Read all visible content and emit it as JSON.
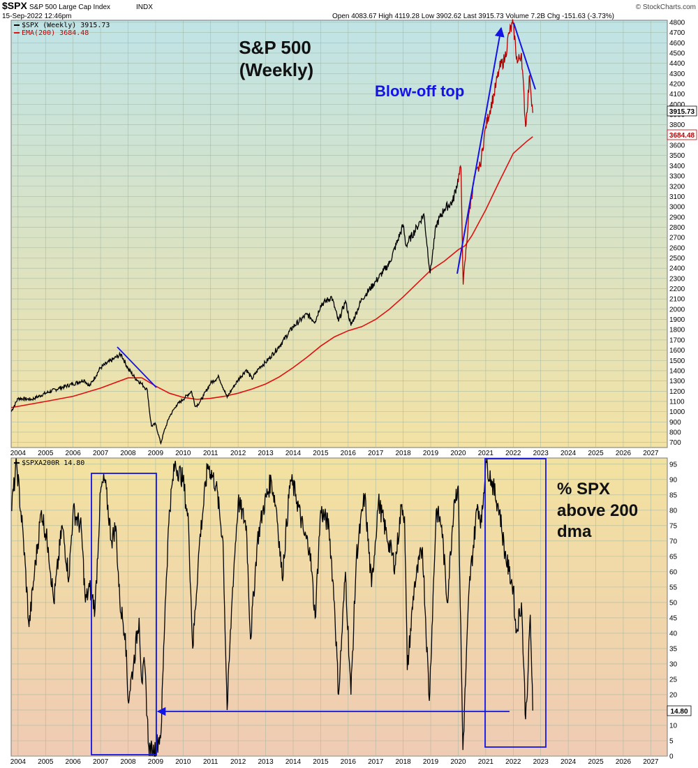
{
  "header": {
    "symbol": "$SPX",
    "name": "S&P 500 Large Cap Index",
    "exchange": "INDX",
    "timestamp": "15-Sep-2022 12:46pm",
    "ohlc": "Open 4083.67  High 4119.28  Low 3902.62  Last 3915.73  Volume 7.2B  Chg -151.63 (-3.73%)",
    "credit": "© StockCharts.com"
  },
  "legend": {
    "price": "$SPX (Weekly) 3915.73",
    "ema": "EMA(200) 3684.48",
    "breadth": "$SPXA200R 14.80"
  },
  "annotations": {
    "title_line1": "S&P 500",
    "title_line2": "(Weekly)",
    "blowoff": "Blow-off top",
    "right_line1": "% SPX",
    "right_line2": "above 200",
    "right_line3": "dma"
  },
  "value_tags": {
    "price_last": "3915.73",
    "ema_last": "3684.48",
    "breadth_last": "14.80"
  },
  "colors": {
    "price_line": "#000000",
    "price_line_recent": "#b40000",
    "ema_line": "#e01010",
    "annotation_blue": "#1313e6",
    "top_bg_top": "#bfe3e6",
    "top_bg_bottom": "#f3e2a4",
    "bottom_bg_top": "#f2e2a0",
    "bottom_bg_bottom": "#efcbb4"
  },
  "chart_data": [
    {
      "type": "line",
      "title": "S&P 500 (Weekly)",
      "ylim": [
        650,
        4820
      ],
      "y_ticks": [
        700,
        800,
        900,
        1000,
        1100,
        1200,
        1300,
        1400,
        1500,
        1600,
        1700,
        1800,
        1900,
        2000,
        2100,
        2200,
        2300,
        2400,
        2500,
        2600,
        2700,
        2800,
        2900,
        3000,
        3100,
        3200,
        3300,
        3400,
        3500,
        3600,
        3700,
        3800,
        3900,
        4000,
        4100,
        4200,
        4300,
        4400,
        4500,
        4600,
        4700,
        4800
      ],
      "xlim": [
        2003.75,
        2027.6
      ],
      "x_ticks": [
        "2004",
        "2005",
        "2006",
        "2007",
        "2008",
        "2009",
        "2010",
        "2011",
        "2012",
        "2013",
        "2014",
        "2015",
        "2016",
        "2017",
        "2018",
        "2019",
        "2020",
        "2021",
        "2022",
        "2023",
        "2024",
        "2025",
        "2026",
        "2027"
      ],
      "grid": true,
      "series": [
        {
          "name": "$SPX (Weekly)",
          "points": [
            [
              2003.75,
              1000
            ],
            [
              2004.0,
              1130
            ],
            [
              2004.5,
              1120
            ],
            [
              2005.0,
              1180
            ],
            [
              2005.5,
              1230
            ],
            [
              2006.0,
              1270
            ],
            [
              2006.4,
              1310
            ],
            [
              2006.6,
              1250
            ],
            [
              2007.0,
              1430
            ],
            [
              2007.5,
              1520
            ],
            [
              2007.75,
              1560
            ],
            [
              2008.0,
              1420
            ],
            [
              2008.25,
              1330
            ],
            [
              2008.5,
              1270
            ],
            [
              2008.7,
              1210
            ],
            [
              2008.78,
              1000
            ],
            [
              2008.85,
              860
            ],
            [
              2009.0,
              880
            ],
            [
              2009.19,
              690
            ],
            [
              2009.3,
              800
            ],
            [
              2009.5,
              950
            ],
            [
              2009.75,
              1060
            ],
            [
              2010.0,
              1120
            ],
            [
              2010.3,
              1200
            ],
            [
              2010.45,
              1050
            ],
            [
              2010.6,
              1090
            ],
            [
              2010.75,
              1160
            ],
            [
              2011.0,
              1280
            ],
            [
              2011.3,
              1340
            ],
            [
              2011.6,
              1140
            ],
            [
              2011.8,
              1230
            ],
            [
              2012.0,
              1310
            ],
            [
              2012.3,
              1410
            ],
            [
              2012.5,
              1320
            ],
            [
              2012.8,
              1440
            ],
            [
              2013.0,
              1480
            ],
            [
              2013.5,
              1640
            ],
            [
              2014.0,
              1830
            ],
            [
              2014.5,
              1950
            ],
            [
              2014.8,
              1880
            ],
            [
              2015.0,
              2040
            ],
            [
              2015.4,
              2120
            ],
            [
              2015.65,
              1880
            ],
            [
              2015.9,
              2080
            ],
            [
              2016.1,
              1840
            ],
            [
              2016.5,
              2100
            ],
            [
              2017.0,
              2270
            ],
            [
              2017.5,
              2450
            ],
            [
              2018.0,
              2820
            ],
            [
              2018.1,
              2620
            ],
            [
              2018.5,
              2800
            ],
            [
              2018.75,
              2930
            ],
            [
              2018.98,
              2350
            ],
            [
              2019.2,
              2820
            ],
            [
              2019.5,
              2980
            ],
            [
              2019.8,
              3050
            ],
            [
              2020.1,
              3380
            ],
            [
              2020.18,
              2240
            ],
            [
              2020.4,
              2950
            ],
            [
              2020.6,
              3300
            ],
            [
              2020.8,
              3400
            ],
            [
              2021.0,
              3780
            ],
            [
              2021.3,
              4100
            ],
            [
              2021.5,
              4350
            ],
            [
              2021.7,
              4450
            ],
            [
              2021.85,
              4700
            ],
            [
              2022.0,
              4780
            ],
            [
              2022.15,
              4400
            ],
            [
              2022.3,
              4500
            ],
            [
              2022.45,
              3780
            ],
            [
              2022.6,
              4280
            ],
            [
              2022.71,
              3915.73
            ]
          ]
        },
        {
          "name": "EMA(200)",
          "points": [
            [
              2003.75,
              1040
            ],
            [
              2005.0,
              1100
            ],
            [
              2006.0,
              1150
            ],
            [
              2007.0,
              1230
            ],
            [
              2007.5,
              1280
            ],
            [
              2008.0,
              1330
            ],
            [
              2008.5,
              1330
            ],
            [
              2009.0,
              1250
            ],
            [
              2009.5,
              1180
            ],
            [
              2010.0,
              1140
            ],
            [
              2010.5,
              1120
            ],
            [
              2011.0,
              1130
            ],
            [
              2011.5,
              1150
            ],
            [
              2012.0,
              1180
            ],
            [
              2012.5,
              1220
            ],
            [
              2013.0,
              1270
            ],
            [
              2013.5,
              1340
            ],
            [
              2014.0,
              1430
            ],
            [
              2014.5,
              1530
            ],
            [
              2015.0,
              1640
            ],
            [
              2015.5,
              1730
            ],
            [
              2016.0,
              1790
            ],
            [
              2016.5,
              1830
            ],
            [
              2017.0,
              1900
            ],
            [
              2017.5,
              2000
            ],
            [
              2018.0,
              2120
            ],
            [
              2018.5,
              2250
            ],
            [
              2019.0,
              2380
            ],
            [
              2019.5,
              2470
            ],
            [
              2020.0,
              2580
            ],
            [
              2020.25,
              2620
            ],
            [
              2020.5,
              2720
            ],
            [
              2021.0,
              2970
            ],
            [
              2021.5,
              3250
            ],
            [
              2022.0,
              3520
            ],
            [
              2022.5,
              3640
            ],
            [
              2022.71,
              3684.48
            ]
          ]
        }
      ]
    },
    {
      "type": "line",
      "title": "$SPXA200R",
      "ylim": [
        0,
        97
      ],
      "y_ticks": [
        0,
        5,
        10,
        15,
        20,
        25,
        30,
        35,
        40,
        45,
        50,
        55,
        60,
        65,
        70,
        75,
        80,
        85,
        90,
        95
      ],
      "xlim": [
        2003.75,
        2027.6
      ],
      "x_ticks": [
        "2004",
        "2005",
        "2006",
        "2007",
        "2008",
        "2009",
        "2010",
        "2011",
        "2012",
        "2013",
        "2014",
        "2015",
        "2016",
        "2017",
        "2018",
        "2019",
        "2020",
        "2021",
        "2022",
        "2023",
        "2024",
        "2025",
        "2026",
        "2027"
      ],
      "grid": true,
      "series": [
        {
          "name": "$SPXA200R",
          "points": [
            [
              2003.75,
              80
            ],
            [
              2003.95,
              95
            ],
            [
              2004.2,
              70
            ],
            [
              2004.4,
              42
            ],
            [
              2004.6,
              60
            ],
            [
              2004.85,
              80
            ],
            [
              2005.1,
              68
            ],
            [
              2005.3,
              50
            ],
            [
              2005.6,
              75
            ],
            [
              2005.85,
              58
            ],
            [
              2006.0,
              80
            ],
            [
              2006.3,
              74
            ],
            [
              2006.45,
              50
            ],
            [
              2006.6,
              55
            ],
            [
              2006.8,
              48
            ],
            [
              2007.0,
              86
            ],
            [
              2007.15,
              90
            ],
            [
              2007.4,
              70
            ],
            [
              2007.55,
              75
            ],
            [
              2007.7,
              50
            ],
            [
              2007.9,
              40
            ],
            [
              2008.0,
              18
            ],
            [
              2008.2,
              30
            ],
            [
              2008.4,
              45
            ],
            [
              2008.5,
              24
            ],
            [
              2008.6,
              30
            ],
            [
              2008.75,
              3
            ],
            [
              2008.9,
              1
            ],
            [
              2009.1,
              5
            ],
            [
              2009.2,
              8
            ],
            [
              2009.35,
              50
            ],
            [
              2009.5,
              80
            ],
            [
              2009.7,
              95
            ],
            [
              2010.0,
              90
            ],
            [
              2010.2,
              75
            ],
            [
              2010.35,
              35
            ],
            [
              2010.6,
              70
            ],
            [
              2010.9,
              95
            ],
            [
              2011.2,
              88
            ],
            [
              2011.45,
              70
            ],
            [
              2011.6,
              15
            ],
            [
              2011.8,
              55
            ],
            [
              2012.0,
              83
            ],
            [
              2012.3,
              75
            ],
            [
              2012.45,
              38
            ],
            [
              2012.7,
              70
            ],
            [
              2012.9,
              80
            ],
            [
              2013.2,
              90
            ],
            [
              2013.4,
              80
            ],
            [
              2013.6,
              58
            ],
            [
              2013.9,
              90
            ],
            [
              2014.1,
              85
            ],
            [
              2014.4,
              72
            ],
            [
              2014.6,
              68
            ],
            [
              2014.8,
              45
            ],
            [
              2015.0,
              80
            ],
            [
              2015.3,
              75
            ],
            [
              2015.5,
              50
            ],
            [
              2015.65,
              20
            ],
            [
              2015.9,
              60
            ],
            [
              2016.1,
              20
            ],
            [
              2016.3,
              65
            ],
            [
              2016.6,
              85
            ],
            [
              2016.85,
              55
            ],
            [
              2017.1,
              83
            ],
            [
              2017.4,
              72
            ],
            [
              2017.7,
              62
            ],
            [
              2017.95,
              82
            ],
            [
              2018.05,
              78
            ],
            [
              2018.15,
              28
            ],
            [
              2018.4,
              55
            ],
            [
              2018.7,
              68
            ],
            [
              2018.95,
              18
            ],
            [
              2019.2,
              80
            ],
            [
              2019.4,
              75
            ],
            [
              2019.6,
              50
            ],
            [
              2019.85,
              83
            ],
            [
              2020.0,
              88
            ],
            [
              2020.17,
              2
            ],
            [
              2020.4,
              55
            ],
            [
              2020.7,
              82
            ],
            [
              2020.85,
              76
            ],
            [
              2021.0,
              96
            ],
            [
              2021.2,
              90
            ],
            [
              2021.5,
              80
            ],
            [
              2021.7,
              66
            ],
            [
              2021.85,
              60
            ],
            [
              2022.0,
              55
            ],
            [
              2022.1,
              40
            ],
            [
              2022.3,
              50
            ],
            [
              2022.45,
              12
            ],
            [
              2022.55,
              30
            ],
            [
              2022.62,
              46
            ],
            [
              2022.71,
              14.8
            ]
          ]
        }
      ]
    }
  ]
}
